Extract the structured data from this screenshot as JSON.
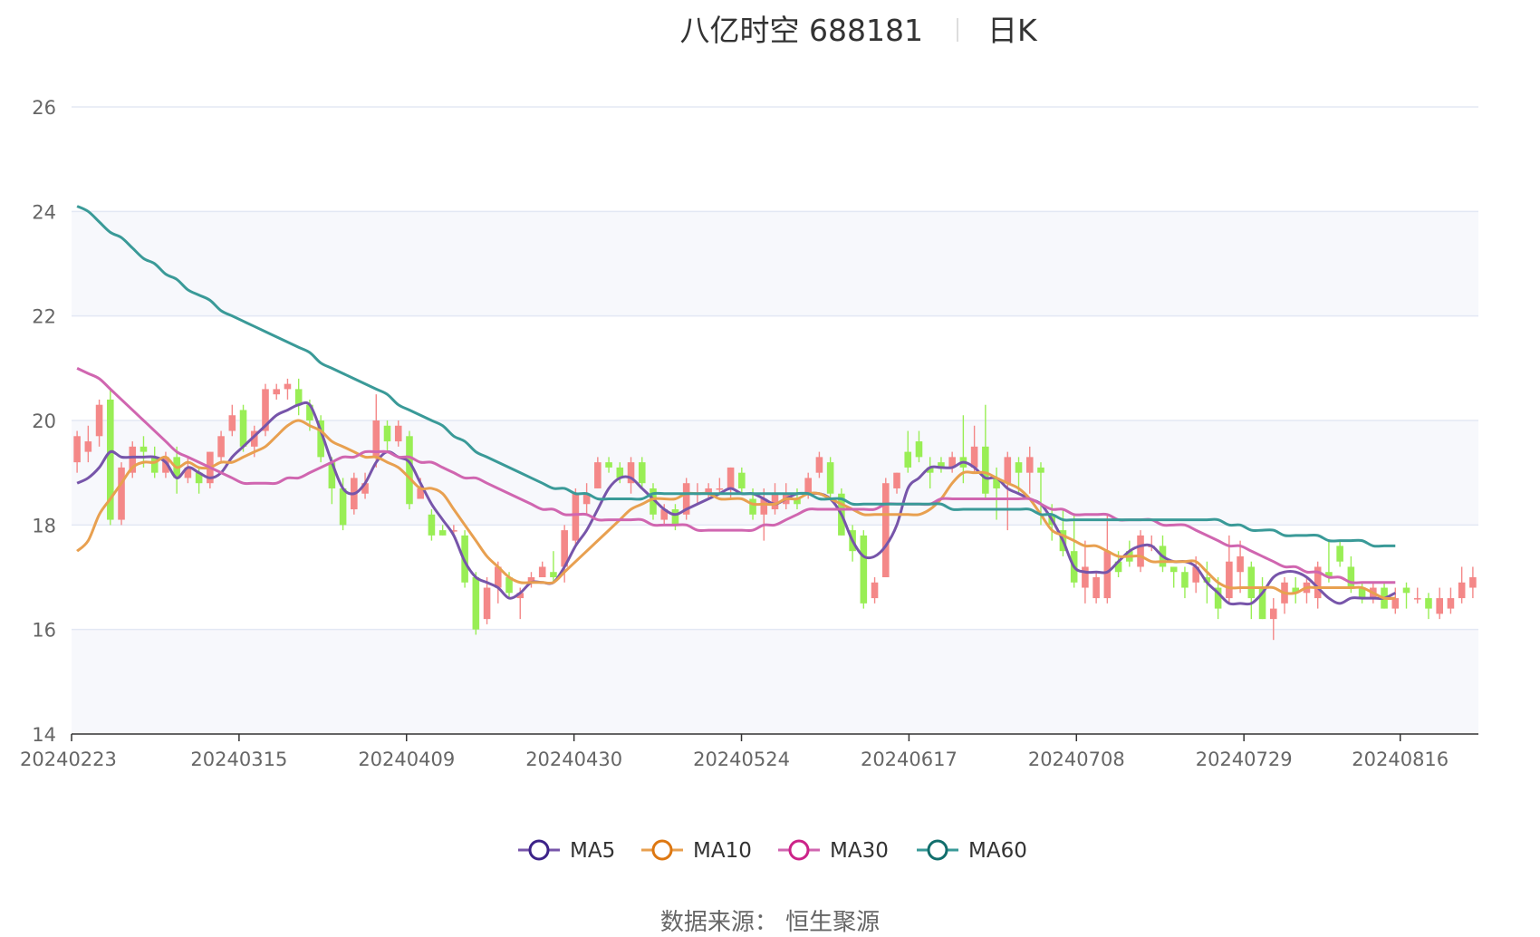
{
  "title": {
    "name": "八亿时空 688181",
    "period": "日K"
  },
  "source": "数据来源：  恒生聚源",
  "colors": {
    "up": "#f48888",
    "down": "#99ee55",
    "grid": "#e3e8f4",
    "band": "#f7f8fc",
    "axis": "#333333"
  },
  "chart_data": {
    "type": "candlestick",
    "ylim": [
      14,
      26
    ],
    "y_ticks": [
      "14",
      "16",
      "18",
      "20",
      "22",
      "24",
      "26"
    ],
    "x_ticks": [
      {
        "index": 0,
        "label": "20240223"
      },
      {
        "index": 15,
        "label": "20240315"
      },
      {
        "index": 30,
        "label": "20240409"
      },
      {
        "index": 45,
        "label": "20240430"
      },
      {
        "index": 60,
        "label": "20240524"
      },
      {
        "index": 75,
        "label": "20240617"
      },
      {
        "index": 90,
        "label": "20240708"
      },
      {
        "index": 105,
        "label": "20240729"
      },
      {
        "index": 119,
        "label": "20240816"
      }
    ],
    "candles": [
      [
        19.2,
        19.7,
        19.8,
        19.0
      ],
      [
        19.4,
        19.6,
        19.9,
        19.2
      ],
      [
        19.7,
        20.3,
        20.4,
        19.5
      ],
      [
        20.4,
        18.1,
        20.6,
        18.0
      ],
      [
        18.1,
        19.1,
        19.2,
        18.0
      ],
      [
        19.0,
        19.5,
        19.6,
        18.9
      ],
      [
        19.5,
        19.4,
        19.7,
        19.1
      ],
      [
        19.3,
        19.0,
        19.5,
        18.9
      ],
      [
        19.0,
        19.3,
        19.4,
        18.9
      ],
      [
        19.3,
        18.9,
        19.5,
        18.6
      ],
      [
        18.9,
        19.1,
        19.3,
        18.8
      ],
      [
        19.0,
        18.8,
        19.1,
        18.6
      ],
      [
        18.8,
        19.4,
        19.4,
        18.7
      ],
      [
        19.3,
        19.7,
        19.8,
        19.2
      ],
      [
        19.8,
        20.1,
        20.3,
        19.7
      ],
      [
        20.2,
        19.5,
        20.3,
        19.4
      ],
      [
        19.5,
        19.8,
        19.9,
        19.3
      ],
      [
        19.8,
        20.6,
        20.7,
        19.7
      ],
      [
        20.5,
        20.6,
        20.7,
        20.4
      ],
      [
        20.6,
        20.7,
        20.8,
        20.4
      ],
      [
        20.6,
        20.3,
        20.8,
        20.1
      ],
      [
        20.3,
        20.0,
        20.4,
        19.8
      ],
      [
        20.0,
        19.3,
        20.1,
        19.2
      ],
      [
        19.2,
        18.7,
        19.3,
        18.4
      ],
      [
        18.7,
        18.0,
        18.9,
        17.9
      ],
      [
        18.3,
        18.9,
        19.0,
        18.2
      ],
      [
        18.6,
        18.8,
        19.0,
        18.5
      ],
      [
        19.3,
        20.0,
        20.5,
        19.1
      ],
      [
        19.9,
        19.6,
        20.0,
        19.4
      ],
      [
        19.6,
        19.9,
        20.0,
        19.5
      ],
      [
        19.7,
        18.4,
        19.8,
        18.3
      ],
      [
        18.5,
        18.7,
        18.9,
        18.5
      ],
      [
        18.2,
        17.8,
        18.3,
        17.7
      ],
      [
        17.9,
        17.8,
        18.0,
        17.8
      ],
      [
        17.9,
        17.9,
        18.0,
        17.8
      ],
      [
        17.8,
        16.9,
        17.9,
        16.8
      ],
      [
        17.0,
        16.0,
        17.1,
        15.9
      ],
      [
        16.2,
        16.8,
        17.0,
        16.1
      ],
      [
        16.8,
        17.2,
        17.3,
        16.5
      ],
      [
        17.0,
        16.7,
        17.1,
        16.6
      ],
      [
        16.6,
        16.7,
        16.8,
        16.2
      ],
      [
        16.9,
        17.0,
        17.1,
        16.8
      ],
      [
        17.0,
        17.2,
        17.3,
        17.0
      ],
      [
        17.1,
        17.0,
        17.5,
        16.9
      ],
      [
        17.2,
        17.9,
        18.0,
        16.9
      ],
      [
        17.7,
        18.6,
        18.7,
        17.6
      ],
      [
        18.4,
        18.6,
        18.8,
        18.2
      ],
      [
        18.7,
        19.2,
        19.3,
        18.7
      ],
      [
        19.2,
        19.1,
        19.3,
        19.0
      ],
      [
        19.1,
        18.9,
        19.2,
        18.8
      ],
      [
        18.8,
        19.2,
        19.3,
        18.6
      ],
      [
        19.2,
        18.8,
        19.3,
        18.7
      ],
      [
        18.7,
        18.2,
        18.8,
        18.1
      ],
      [
        18.1,
        18.3,
        18.4,
        18.0
      ],
      [
        18.3,
        18.0,
        18.4,
        17.9
      ],
      [
        18.2,
        18.8,
        18.9,
        18.1
      ],
      [
        18.6,
        18.6,
        18.8,
        18.4
      ],
      [
        18.6,
        18.7,
        18.8,
        18.5
      ],
      [
        18.7,
        18.7,
        18.9,
        18.6
      ],
      [
        18.7,
        19.1,
        19.1,
        18.5
      ],
      [
        19.0,
        18.7,
        19.1,
        18.6
      ],
      [
        18.5,
        18.2,
        18.7,
        18.1
      ],
      [
        18.2,
        18.5,
        18.7,
        17.7
      ],
      [
        18.3,
        18.6,
        18.8,
        18.2
      ],
      [
        18.4,
        18.6,
        18.8,
        18.3
      ],
      [
        18.5,
        18.4,
        18.7,
        18.3
      ],
      [
        18.6,
        18.9,
        19.0,
        18.5
      ],
      [
        19.0,
        19.3,
        19.4,
        18.9
      ],
      [
        19.2,
        18.6,
        19.3,
        18.5
      ],
      [
        18.6,
        17.8,
        18.7,
        17.8
      ],
      [
        17.9,
        17.5,
        18.0,
        17.3
      ],
      [
        17.8,
        16.5,
        17.9,
        16.4
      ],
      [
        16.6,
        16.9,
        17.0,
        16.5
      ],
      [
        17.0,
        18.8,
        18.9,
        17.0
      ],
      [
        18.7,
        19.0,
        19.0,
        18.6
      ],
      [
        19.4,
        19.1,
        19.8,
        19.0
      ],
      [
        19.6,
        19.3,
        19.8,
        19.2
      ],
      [
        19.1,
        19.0,
        19.3,
        18.7
      ],
      [
        19.2,
        19.1,
        19.3,
        19.0
      ],
      [
        19.1,
        19.3,
        19.4,
        19.0
      ],
      [
        19.3,
        19.1,
        20.1,
        18.8
      ],
      [
        19.1,
        19.5,
        19.9,
        19.0
      ],
      [
        19.5,
        18.6,
        20.3,
        18.5
      ],
      [
        18.9,
        18.7,
        19.1,
        18.1
      ],
      [
        18.8,
        19.3,
        19.4,
        17.9
      ],
      [
        19.2,
        19.0,
        19.3,
        18.6
      ],
      [
        19.0,
        19.3,
        19.5,
        18.6
      ],
      [
        19.1,
        19.0,
        19.2,
        18.0
      ],
      [
        18.2,
        18.0,
        18.4,
        17.7
      ],
      [
        17.9,
        17.5,
        18.3,
        17.4
      ],
      [
        17.5,
        16.9,
        18.2,
        16.8
      ],
      [
        16.8,
        17.2,
        17.7,
        16.5
      ],
      [
        16.6,
        17.0,
        17.1,
        16.5
      ],
      [
        16.6,
        17.5,
        18.2,
        16.5
      ],
      [
        17.3,
        17.1,
        17.5,
        17.0
      ],
      [
        17.5,
        17.3,
        17.7,
        17.2
      ],
      [
        17.2,
        17.8,
        17.9,
        17.1
      ],
      [
        17.6,
        17.6,
        17.8,
        17.5
      ],
      [
        17.6,
        17.2,
        17.8,
        17.1
      ],
      [
        17.2,
        17.1,
        17.2,
        16.8
      ],
      [
        17.1,
        16.8,
        17.2,
        16.6
      ],
      [
        16.9,
        17.2,
        17.4,
        16.7
      ],
      [
        17.0,
        16.9,
        17.3,
        16.5
      ],
      [
        16.8,
        16.4,
        17.0,
        16.2
      ],
      [
        16.6,
        17.3,
        17.8,
        16.5
      ],
      [
        17.1,
        17.4,
        17.7,
        16.7
      ],
      [
        17.2,
        16.6,
        17.3,
        16.2
      ],
      [
        16.8,
        16.2,
        17.0,
        16.2
      ],
      [
        16.2,
        16.4,
        16.6,
        15.8
      ],
      [
        16.5,
        16.9,
        17.0,
        16.3
      ],
      [
        16.8,
        16.7,
        17.0,
        16.5
      ],
      [
        16.7,
        16.9,
        17.0,
        16.5
      ],
      [
        16.6,
        17.2,
        17.3,
        16.4
      ],
      [
        17.1,
        17.0,
        17.7,
        16.9
      ],
      [
        17.6,
        17.3,
        17.7,
        17.2
      ],
      [
        17.2,
        16.8,
        17.4,
        16.7
      ],
      [
        16.8,
        16.6,
        16.9,
        16.5
      ],
      [
        16.6,
        16.8,
        16.9,
        16.5
      ],
      [
        16.8,
        16.4,
        16.9,
        16.4
      ],
      [
        16.4,
        16.6,
        16.8,
        16.3
      ],
      [
        16.8,
        16.7,
        16.9,
        16.4
      ],
      [
        16.6,
        16.6,
        16.8,
        16.5
      ],
      [
        16.6,
        16.4,
        16.7,
        16.2
      ],
      [
        16.3,
        16.6,
        16.8,
        16.2
      ],
      [
        16.4,
        16.6,
        16.8,
        16.3
      ],
      [
        16.6,
        16.9,
        17.2,
        16.5
      ],
      [
        16.8,
        17.0,
        17.2,
        16.6
      ]
    ],
    "series": [
      {
        "name": "MA5",
        "color": "#7755aa",
        "legend_ring": "#3c2288",
        "values": [
          18.8,
          18.9,
          19.1,
          19.4,
          19.3,
          19.3,
          19.3,
          19.3,
          19.2,
          18.9,
          19.1,
          19.0,
          18.9,
          19.0,
          19.3,
          19.5,
          19.7,
          19.9,
          20.1,
          20.2,
          20.3,
          20.3,
          19.8,
          19.2,
          18.7,
          18.6,
          18.8,
          19.2,
          19.4,
          19.3,
          19.2,
          18.8,
          18.4,
          18.1,
          17.8,
          17.3,
          17.0,
          16.9,
          16.8,
          16.6,
          16.7,
          16.9,
          16.9,
          16.9,
          17.2,
          17.6,
          17.9,
          18.3,
          18.7,
          18.9,
          18.9,
          18.7,
          18.5,
          18.3,
          18.2,
          18.3,
          18.4,
          18.5,
          18.6,
          18.7,
          18.6,
          18.6,
          18.5,
          18.4,
          18.5,
          18.6,
          18.6,
          18.6,
          18.5,
          18.2,
          17.7,
          17.4,
          17.4,
          17.6,
          18.0,
          18.7,
          18.9,
          19.1,
          19.1,
          19.1,
          19.2,
          19.1,
          18.9,
          18.9,
          18.7,
          18.6,
          18.5,
          18.4,
          18.1,
          17.7,
          17.2,
          17.1,
          17.1,
          17.1,
          17.3,
          17.5,
          17.6,
          17.6,
          17.4,
          17.3,
          17.3,
          17.2,
          16.9,
          16.7,
          16.5,
          16.5,
          16.5,
          16.7,
          17.0,
          17.1,
          17.1,
          17.0,
          16.8,
          16.6,
          16.5,
          16.6,
          16.6,
          16.6,
          16.6,
          16.7
        ]
      },
      {
        "name": "MA10",
        "color": "#e8a050",
        "legend_ring": "#dd7711",
        "values": [
          17.5,
          17.7,
          18.2,
          18.5,
          18.8,
          19.1,
          19.2,
          19.2,
          19.3,
          19.1,
          19.2,
          19.1,
          19.1,
          19.2,
          19.2,
          19.3,
          19.4,
          19.5,
          19.7,
          19.9,
          20.0,
          19.9,
          19.8,
          19.6,
          19.5,
          19.4,
          19.3,
          19.3,
          19.2,
          19.1,
          18.9,
          18.7,
          18.7,
          18.6,
          18.3,
          18.0,
          17.7,
          17.4,
          17.2,
          17.0,
          16.9,
          16.9,
          16.9,
          16.9,
          17.1,
          17.3,
          17.5,
          17.7,
          17.9,
          18.1,
          18.3,
          18.4,
          18.5,
          18.5,
          18.5,
          18.6,
          18.6,
          18.6,
          18.5,
          18.5,
          18.5,
          18.4,
          18.4,
          18.4,
          18.5,
          18.5,
          18.6,
          18.6,
          18.5,
          18.4,
          18.3,
          18.2,
          18.2,
          18.2,
          18.2,
          18.2,
          18.2,
          18.3,
          18.5,
          18.8,
          19.0,
          19.0,
          19.0,
          18.9,
          18.8,
          18.7,
          18.5,
          18.2,
          17.9,
          17.8,
          17.7,
          17.6,
          17.6,
          17.5,
          17.4,
          17.4,
          17.4,
          17.3,
          17.3,
          17.3,
          17.3,
          17.3,
          17.1,
          16.9,
          16.8,
          16.8,
          16.8,
          16.8,
          16.8,
          16.7,
          16.7,
          16.8,
          16.8,
          16.8,
          16.8,
          16.8,
          16.8,
          16.7,
          16.6,
          16.6
        ]
      },
      {
        "name": "MA30",
        "color": "#d066b0",
        "legend_ring": "#cc2288",
        "values": [
          21.0,
          20.9,
          20.8,
          20.6,
          20.4,
          20.2,
          20.0,
          19.8,
          19.6,
          19.4,
          19.3,
          19.2,
          19.1,
          19.0,
          18.9,
          18.8,
          18.8,
          18.8,
          18.8,
          18.9,
          18.9,
          19.0,
          19.1,
          19.2,
          19.3,
          19.3,
          19.4,
          19.4,
          19.4,
          19.3,
          19.3,
          19.2,
          19.2,
          19.1,
          19.0,
          18.9,
          18.9,
          18.8,
          18.7,
          18.6,
          18.5,
          18.4,
          18.3,
          18.3,
          18.2,
          18.2,
          18.2,
          18.1,
          18.1,
          18.1,
          18.1,
          18.1,
          18.0,
          18.0,
          18.0,
          18.0,
          17.9,
          17.9,
          17.9,
          17.9,
          17.9,
          17.9,
          18.0,
          18.0,
          18.1,
          18.2,
          18.3,
          18.3,
          18.3,
          18.3,
          18.3,
          18.3,
          18.3,
          18.4,
          18.4,
          18.4,
          18.4,
          18.4,
          18.5,
          18.5,
          18.5,
          18.5,
          18.5,
          18.5,
          18.5,
          18.5,
          18.5,
          18.4,
          18.3,
          18.3,
          18.2,
          18.2,
          18.2,
          18.2,
          18.1,
          18.1,
          18.1,
          18.1,
          18.0,
          18.0,
          18.0,
          17.9,
          17.8,
          17.7,
          17.6,
          17.6,
          17.5,
          17.4,
          17.3,
          17.2,
          17.2,
          17.1,
          17.1,
          17.0,
          17.0,
          16.9,
          16.9,
          16.9,
          16.9,
          16.9
        ]
      },
      {
        "name": "MA60",
        "color": "#3a9a98",
        "legend_ring": "#116e6c",
        "values": [
          24.1,
          24.0,
          23.8,
          23.6,
          23.5,
          23.3,
          23.1,
          23.0,
          22.8,
          22.7,
          22.5,
          22.4,
          22.3,
          22.1,
          22.0,
          21.9,
          21.8,
          21.7,
          21.6,
          21.5,
          21.4,
          21.3,
          21.1,
          21.0,
          20.9,
          20.8,
          20.7,
          20.6,
          20.5,
          20.3,
          20.2,
          20.1,
          20.0,
          19.9,
          19.7,
          19.6,
          19.4,
          19.3,
          19.2,
          19.1,
          19.0,
          18.9,
          18.8,
          18.7,
          18.7,
          18.6,
          18.6,
          18.5,
          18.5,
          18.5,
          18.5,
          18.5,
          18.6,
          18.6,
          18.6,
          18.6,
          18.6,
          18.6,
          18.6,
          18.6,
          18.6,
          18.6,
          18.6,
          18.6,
          18.6,
          18.6,
          18.6,
          18.5,
          18.5,
          18.5,
          18.4,
          18.4,
          18.4,
          18.4,
          18.4,
          18.4,
          18.4,
          18.4,
          18.4,
          18.3,
          18.3,
          18.3,
          18.3,
          18.3,
          18.3,
          18.3,
          18.3,
          18.2,
          18.2,
          18.1,
          18.1,
          18.1,
          18.1,
          18.1,
          18.1,
          18.1,
          18.1,
          18.1,
          18.1,
          18.1,
          18.1,
          18.1,
          18.1,
          18.1,
          18.0,
          18.0,
          17.9,
          17.9,
          17.9,
          17.8,
          17.8,
          17.8,
          17.8,
          17.7,
          17.7,
          17.7,
          17.7,
          17.6,
          17.6,
          17.6
        ]
      }
    ]
  }
}
